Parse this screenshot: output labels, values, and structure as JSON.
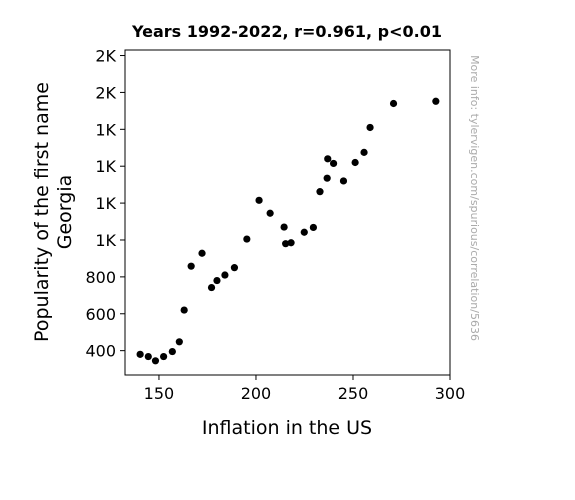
{
  "chart_data": {
    "type": "scatter",
    "title": "Years 1992-2022, r=0.961, p<0.01",
    "xlabel": "Inflation in the US",
    "ylabel_lines": [
      "Popularity of the first name",
      "Georgia"
    ],
    "watermark": "More info: tylervigen.com/spurious/correlation/5636",
    "xlim": [
      132.5,
      300
    ],
    "ylim": [
      268,
      2030
    ],
    "x_ticks": [
      {
        "value": 150,
        "label": "150"
      },
      {
        "value": 200,
        "label": "200"
      },
      {
        "value": 250,
        "label": "250"
      },
      {
        "value": 300,
        "label": "300"
      }
    ],
    "y_ticks": [
      {
        "value": 400,
        "label": "400"
      },
      {
        "value": 600,
        "label": "600"
      },
      {
        "value": 800,
        "label": "800"
      },
      {
        "value": 1000,
        "label": "1K"
      },
      {
        "value": 1200,
        "label": "1K"
      },
      {
        "value": 1400,
        "label": "1K"
      },
      {
        "value": 1600,
        "label": "1K"
      },
      {
        "value": 1800,
        "label": "2K"
      },
      {
        "value": 2000,
        "label": "2K"
      }
    ],
    "point_color": "#000000",
    "points": [
      {
        "x": 140.3,
        "y": 380
      },
      {
        "x": 144.5,
        "y": 368
      },
      {
        "x": 148.2,
        "y": 345
      },
      {
        "x": 152.4,
        "y": 368
      },
      {
        "x": 156.9,
        "y": 395
      },
      {
        "x": 160.5,
        "y": 448
      },
      {
        "x": 163.0,
        "y": 620
      },
      {
        "x": 166.6,
        "y": 858
      },
      {
        "x": 172.2,
        "y": 928
      },
      {
        "x": 177.1,
        "y": 742
      },
      {
        "x": 179.9,
        "y": 780
      },
      {
        "x": 184.0,
        "y": 810
      },
      {
        "x": 188.9,
        "y": 850
      },
      {
        "x": 195.3,
        "y": 1005
      },
      {
        "x": 201.6,
        "y": 1215
      },
      {
        "x": 207.3,
        "y": 1145
      },
      {
        "x": 215.3,
        "y": 980
      },
      {
        "x": 214.5,
        "y": 1070
      },
      {
        "x": 218.1,
        "y": 985
      },
      {
        "x": 224.9,
        "y": 1042
      },
      {
        "x": 229.6,
        "y": 1068
      },
      {
        "x": 233.0,
        "y": 1262
      },
      {
        "x": 236.7,
        "y": 1335
      },
      {
        "x": 237.0,
        "y": 1440
      },
      {
        "x": 240.0,
        "y": 1415
      },
      {
        "x": 245.1,
        "y": 1320
      },
      {
        "x": 251.1,
        "y": 1420
      },
      {
        "x": 255.7,
        "y": 1475
      },
      {
        "x": 258.8,
        "y": 1610
      },
      {
        "x": 270.9,
        "y": 1740
      },
      {
        "x": 292.7,
        "y": 1752
      }
    ]
  }
}
